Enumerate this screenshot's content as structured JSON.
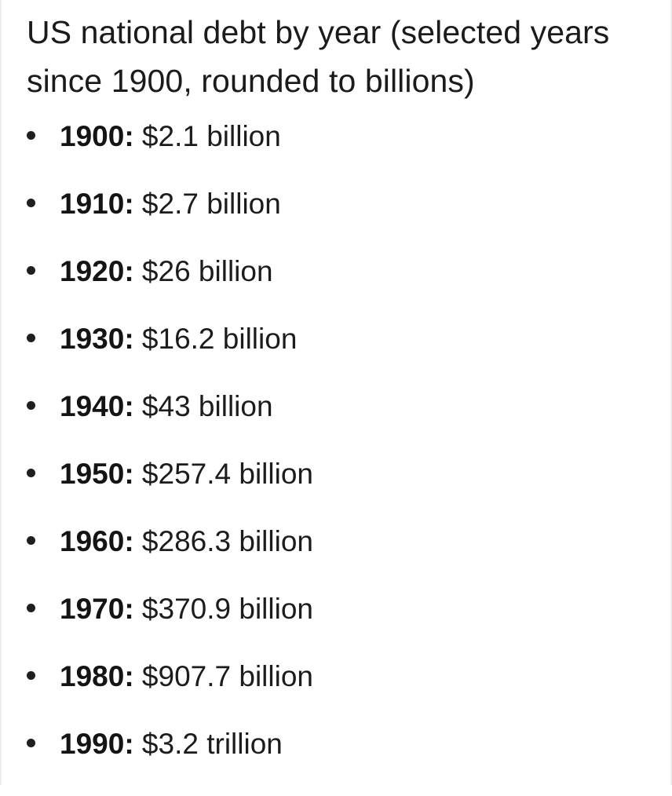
{
  "document": {
    "title": "US national debt by year (selected years since 1900, rounded to billions)"
  },
  "debt_list": [
    {
      "year": "1900",
      "amount": "$2.1 billion"
    },
    {
      "year": "1910",
      "amount": "$2.7 billion"
    },
    {
      "year": "1920",
      "amount": "$26 billion"
    },
    {
      "year": "1930",
      "amount": "$16.2 billion"
    },
    {
      "year": "1940",
      "amount": "$43 billion"
    },
    {
      "year": "1950",
      "amount": "$257.4 billion"
    },
    {
      "year": "1960",
      "amount": "$286.3 billion"
    },
    {
      "year": "1970",
      "amount": "$370.9 billion"
    },
    {
      "year": "1980",
      "amount": "$907.7 billion"
    },
    {
      "year": "1990",
      "amount": "$3.2 trillion"
    }
  ]
}
